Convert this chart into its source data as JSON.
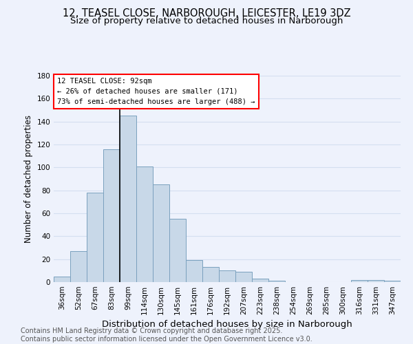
{
  "title1": "12, TEASEL CLOSE, NARBOROUGH, LEICESTER, LE19 3DZ",
  "title2": "Size of property relative to detached houses in Narborough",
  "xlabel": "Distribution of detached houses by size in Narborough",
  "ylabel": "Number of detached properties",
  "categories": [
    "36sqm",
    "52sqm",
    "67sqm",
    "83sqm",
    "99sqm",
    "114sqm",
    "130sqm",
    "145sqm",
    "161sqm",
    "176sqm",
    "192sqm",
    "207sqm",
    "223sqm",
    "238sqm",
    "254sqm",
    "269sqm",
    "285sqm",
    "300sqm",
    "316sqm",
    "331sqm",
    "347sqm"
  ],
  "values": [
    5,
    27,
    78,
    116,
    145,
    101,
    85,
    55,
    19,
    13,
    10,
    9,
    3,
    1,
    0,
    0,
    0,
    0,
    2,
    2,
    1
  ],
  "bar_color": "#c8d8e8",
  "bar_edge_color": "#7aa0be",
  "annotation_box_text": "12 TEASEL CLOSE: 92sqm\n← 26% of detached houses are smaller (171)\n73% of semi-detached houses are larger (488) →",
  "annotation_box_color": "white",
  "annotation_box_edge_color": "red",
  "annotation_line_color": "black",
  "vertical_line_x": 3.5,
  "ylim": [
    0,
    180
  ],
  "yticks": [
    0,
    20,
    40,
    60,
    80,
    100,
    120,
    140,
    160,
    180
  ],
  "grid_color": "#d4dff0",
  "background_color": "#eef2fc",
  "footer1": "Contains HM Land Registry data © Crown copyright and database right 2025.",
  "footer2": "Contains public sector information licensed under the Open Government Licence v3.0.",
  "title1_fontsize": 10.5,
  "title2_fontsize": 9.5,
  "xlabel_fontsize": 9.5,
  "ylabel_fontsize": 8.5,
  "tick_fontsize": 7.5,
  "footer_fontsize": 7,
  "annotation_fontsize": 7.5
}
